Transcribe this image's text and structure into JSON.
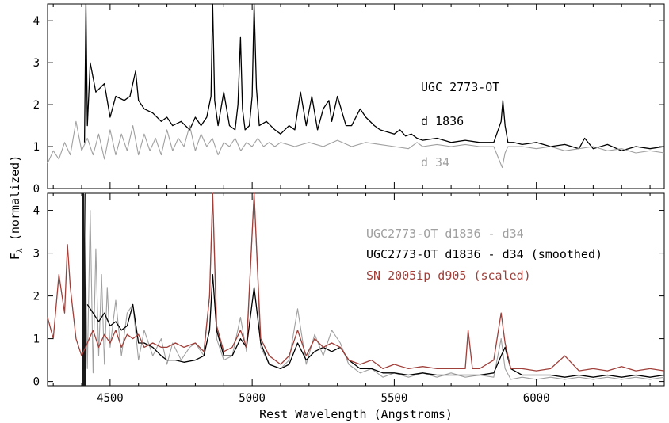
{
  "chart_data": [
    {
      "panel": "top",
      "type": "line",
      "xlim": [
        4280,
        6450
      ],
      "ylim": [
        0,
        4.4
      ],
      "yticks": [
        0,
        1,
        2,
        3,
        4
      ],
      "grid": false,
      "annotations": [
        {
          "text": "UGC 2773-OT",
          "color": "#000000"
        },
        {
          "text": "d 1836",
          "color": "#000000"
        },
        {
          "text": "d 34",
          "color": "#a0a0a0"
        }
      ],
      "series": [
        {
          "name": "d 1836",
          "color": "#000000",
          "x": [
            4410,
            4415,
            4420,
            4430,
            4450,
            4480,
            4500,
            4520,
            4550,
            4570,
            4590,
            4600,
            4620,
            4650,
            4680,
            4700,
            4720,
            4750,
            4780,
            4800,
            4820,
            4840,
            4855,
            4861,
            4868,
            4880,
            4900,
            4920,
            4940,
            4950,
            4959,
            4966,
            4975,
            4990,
            5000,
            5007,
            5015,
            5025,
            5050,
            5080,
            5100,
            5130,
            5150,
            5170,
            5190,
            5210,
            5230,
            5250,
            5270,
            5280,
            5300,
            5330,
            5350,
            5380,
            5400,
            5430,
            5450,
            5500,
            5520,
            5540,
            5560,
            5580,
            5600,
            5650,
            5700,
            5750,
            5800,
            5850,
            5876,
            5882,
            5890,
            5900,
            5920,
            5950,
            6000,
            6050,
            6100,
            6150,
            6170,
            6200,
            6250,
            6300,
            6350,
            6400,
            6450
          ],
          "y": [
            1.1,
            4.4,
            1.5,
            3.0,
            2.3,
            2.5,
            1.7,
            2.2,
            2.1,
            2.2,
            2.8,
            2.1,
            1.9,
            1.8,
            1.6,
            1.7,
            1.5,
            1.6,
            1.4,
            1.7,
            1.5,
            1.7,
            2.2,
            4.4,
            2.1,
            1.5,
            2.3,
            1.5,
            1.4,
            2.0,
            3.6,
            1.9,
            1.4,
            1.5,
            2.2,
            4.4,
            2.4,
            1.5,
            1.6,
            1.4,
            1.3,
            1.5,
            1.4,
            2.3,
            1.5,
            2.2,
            1.4,
            1.9,
            2.1,
            1.6,
            2.2,
            1.5,
            1.5,
            1.9,
            1.7,
            1.5,
            1.4,
            1.3,
            1.4,
            1.25,
            1.3,
            1.2,
            1.15,
            1.2,
            1.1,
            1.15,
            1.1,
            1.1,
            1.6,
            2.1,
            1.5,
            1.1,
            1.1,
            1.05,
            1.1,
            1.0,
            1.05,
            0.95,
            1.2,
            0.95,
            1.05,
            0.9,
            1.0,
            0.95,
            1.0
          ]
        },
        {
          "name": "d 34",
          "color": "#a0a0a0",
          "x": [
            4280,
            4300,
            4320,
            4340,
            4360,
            4380,
            4400,
            4420,
            4440,
            4460,
            4480,
            4500,
            4520,
            4540,
            4560,
            4580,
            4600,
            4620,
            4640,
            4660,
            4680,
            4700,
            4720,
            4740,
            4760,
            4780,
            4800,
            4820,
            4840,
            4860,
            4880,
            4900,
            4920,
            4940,
            4960,
            4980,
            5000,
            5020,
            5040,
            5060,
            5080,
            5100,
            5150,
            5200,
            5250,
            5300,
            5350,
            5400,
            5450,
            5500,
            5550,
            5580,
            5600,
            5650,
            5700,
            5750,
            5800,
            5850,
            5880,
            5890,
            5900,
            5950,
            6000,
            6050,
            6100,
            6150,
            6200,
            6250,
            6300,
            6350,
            6400,
            6450
          ],
          "y": [
            0.6,
            0.9,
            0.7,
            1.1,
            0.8,
            1.6,
            0.9,
            1.2,
            0.8,
            1.3,
            0.7,
            1.4,
            0.8,
            1.3,
            0.9,
            1.5,
            0.8,
            1.3,
            0.9,
            1.2,
            0.8,
            1.4,
            0.9,
            1.2,
            1.0,
            1.5,
            0.9,
            1.3,
            1.0,
            1.2,
            0.8,
            1.1,
            1.0,
            1.2,
            0.9,
            1.1,
            1.0,
            1.2,
            1.0,
            1.1,
            1.0,
            1.1,
            1.0,
            1.1,
            1.0,
            1.15,
            1.0,
            1.1,
            1.05,
            1.0,
            0.95,
            1.1,
            1.0,
            1.05,
            1.0,
            1.05,
            1.0,
            1.0,
            0.5,
            0.85,
            1.0,
            1.0,
            0.95,
            1.0,
            0.9,
            0.95,
            1.0,
            0.9,
            0.95,
            0.85,
            0.9,
            0.85
          ]
        }
      ]
    },
    {
      "panel": "bottom",
      "type": "line",
      "xlim": [
        4280,
        6450
      ],
      "ylim": [
        -0.1,
        4.4
      ],
      "yticks": [
        0,
        1,
        2,
        3,
        4
      ],
      "xticks": [
        4500,
        5000,
        5500,
        6000
      ],
      "xlabel": "Rest Wavelength (Angstroms)",
      "grid": false,
      "legend_placement": "top-right",
      "series": [
        {
          "name": "UGC2773-OT d1836 - d34",
          "color": "#a0a0a0",
          "x": [
            4410,
            4420,
            4430,
            4440,
            4450,
            4460,
            4470,
            4480,
            4490,
            4500,
            4520,
            4540,
            4560,
            4580,
            4600,
            4620,
            4650,
            4680,
            4700,
            4720,
            4750,
            4780,
            4800,
            4830,
            4850,
            4861,
            4875,
            4900,
            4930,
            4959,
            4980,
            5007,
            5030,
            5060,
            5100,
            5130,
            5160,
            5190,
            5220,
            5250,
            5280,
            5310,
            5340,
            5380,
            5420,
            5460,
            5500,
            5550,
            5600,
            5650,
            5700,
            5750,
            5800,
            5850,
            5876,
            5890,
            5910,
            5950,
            6000,
            6050,
            6100,
            6150,
            6200,
            6250,
            6300,
            6350,
            6400,
            6450
          ],
          "y": [
            4.4,
            0.3,
            4.0,
            0.2,
            3.1,
            0.6,
            2.5,
            0.4,
            2.2,
            0.8,
            1.9,
            0.6,
            1.6,
            1.8,
            0.5,
            1.2,
            0.6,
            1.0,
            0.4,
            0.9,
            0.5,
            0.8,
            0.9,
            0.6,
            2.0,
            4.4,
            1.0,
            0.5,
            0.6,
            1.5,
            0.7,
            4.4,
            0.8,
            0.4,
            0.3,
            0.5,
            1.7,
            0.4,
            1.1,
            0.6,
            1.2,
            0.9,
            0.4,
            0.2,
            0.3,
            0.1,
            0.2,
            0.1,
            0.2,
            0.1,
            0.2,
            0.1,
            0.15,
            0.1,
            1.0,
            0.3,
            0.05,
            0.1,
            0.05,
            0.1,
            0.05,
            0.1,
            0.05,
            0.1,
            0.05,
            0.1,
            0.05,
            0.1
          ]
        },
        {
          "name": "UGC2773-OT d1836 - d34 (smoothed)",
          "color": "#000000",
          "x": [
            4420,
            4440,
            4460,
            4480,
            4500,
            4520,
            4540,
            4560,
            4580,
            4600,
            4620,
            4650,
            4680,
            4700,
            4730,
            4760,
            4800,
            4830,
            4850,
            4861,
            4875,
            4900,
            4930,
            4959,
            4980,
            5007,
            5030,
            5060,
            5100,
            5130,
            5160,
            5190,
            5220,
            5250,
            5280,
            5310,
            5340,
            5380,
            5420,
            5460,
            5500,
            5550,
            5600,
            5650,
            5700,
            5750,
            5800,
            5850,
            5876,
            5890,
            5910,
            5950,
            6000,
            6050,
            6100,
            6150,
            6200,
            6250,
            6300,
            6350,
            6400,
            6450
          ],
          "y": [
            1.8,
            1.6,
            1.4,
            1.6,
            1.3,
            1.4,
            1.2,
            1.3,
            1.8,
            0.9,
            0.9,
            0.8,
            0.6,
            0.5,
            0.5,
            0.45,
            0.5,
            0.6,
            1.2,
            2.5,
            1.2,
            0.6,
            0.6,
            1.0,
            0.8,
            2.2,
            0.9,
            0.4,
            0.3,
            0.4,
            0.9,
            0.5,
            0.7,
            0.8,
            0.7,
            0.8,
            0.5,
            0.3,
            0.3,
            0.2,
            0.2,
            0.15,
            0.2,
            0.15,
            0.15,
            0.15,
            0.15,
            0.2,
            0.6,
            0.8,
            0.3,
            0.15,
            0.15,
            0.15,
            0.1,
            0.15,
            0.1,
            0.15,
            0.1,
            0.15,
            0.1,
            0.15
          ]
        },
        {
          "name": "SN 2005ip d905 (scaled)",
          "color": "#a0403a",
          "x": [
            4280,
            4300,
            4320,
            4340,
            4350,
            4360,
            4380,
            4400,
            4420,
            4440,
            4460,
            4480,
            4500,
            4520,
            4540,
            4560,
            4580,
            4600,
            4620,
            4650,
            4680,
            4700,
            4730,
            4760,
            4800,
            4830,
            4850,
            4861,
            4875,
            4900,
            4930,
            4959,
            4980,
            5007,
            5030,
            5060,
            5100,
            5130,
            5160,
            5190,
            5220,
            5250,
            5280,
            5310,
            5340,
            5380,
            5420,
            5460,
            5500,
            5550,
            5600,
            5650,
            5700,
            5750,
            5760,
            5775,
            5800,
            5850,
            5876,
            5890,
            5910,
            5950,
            6000,
            6050,
            6100,
            6150,
            6200,
            6250,
            6300,
            6350,
            6400,
            6450
          ],
          "y": [
            1.5,
            1.0,
            2.5,
            1.6,
            3.2,
            2.2,
            1.0,
            0.6,
            0.9,
            1.2,
            0.8,
            1.1,
            0.9,
            1.2,
            0.8,
            1.1,
            1.0,
            1.1,
            0.8,
            0.9,
            0.8,
            0.8,
            0.9,
            0.8,
            0.9,
            0.7,
            2.0,
            4.4,
            1.3,
            0.7,
            0.8,
            1.2,
            0.8,
            4.4,
            1.0,
            0.6,
            0.4,
            0.6,
            1.2,
            0.6,
            1.0,
            0.8,
            0.9,
            0.8,
            0.5,
            0.4,
            0.5,
            0.3,
            0.4,
            0.3,
            0.35,
            0.3,
            0.3,
            0.3,
            1.2,
            0.3,
            0.3,
            0.5,
            1.6,
            0.9,
            0.3,
            0.3,
            0.25,
            0.3,
            0.6,
            0.25,
            0.3,
            0.25,
            0.35,
            0.25,
            0.3,
            0.25
          ]
        }
      ]
    }
  ],
  "ylabel_main": "F",
  "ylabel_sub": "λ",
  "ylabel_suffix": " (normalized)"
}
